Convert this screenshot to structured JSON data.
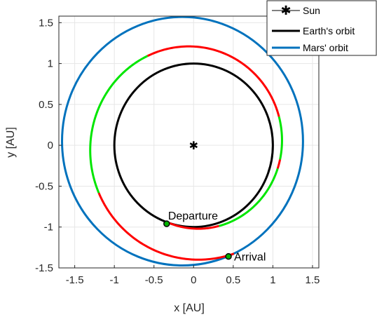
{
  "chart_data": {
    "type": "line",
    "xlabel": "x [AU]",
    "ylabel": "y [AU]",
    "xlim": [
      -1.7,
      1.58
    ],
    "ylim": [
      -1.5,
      1.58
    ],
    "grid": true,
    "xticks": [
      "-1.5",
      "-1",
      "-0.5",
      "0",
      "0.5",
      "1",
      "1.5"
    ],
    "xtick_values": [
      -1.5,
      -1,
      -0.5,
      0,
      0.5,
      1,
      1.5
    ],
    "yticks": [
      "1.5",
      "1",
      "0.5",
      "0",
      "-0.5",
      "-1",
      "-1.5"
    ],
    "ytick_values": [
      1.5,
      1,
      0.5,
      0,
      -0.5,
      -1,
      -1.5
    ],
    "legend_position": "top-right",
    "series": [
      {
        "name": "Sun",
        "marker": "asterisk",
        "color": "#000000",
        "x": [
          0
        ],
        "y": [
          0
        ]
      },
      {
        "name": "Earth's orbit",
        "color": "#000000",
        "shape": "circle",
        "center": [
          0,
          0
        ],
        "radius": 1.0
      },
      {
        "name": "Mars' orbit",
        "color": "#0072BD",
        "shape": "ellipse",
        "center": [
          -0.14,
          0.05
        ],
        "rx": 1.52,
        "ry": 1.52
      }
    ],
    "trajectory": {
      "colors": {
        "coast": "#ff0000",
        "thrust": "#00e600"
      },
      "segments": [
        {
          "mode": "coast",
          "from_deg": 252,
          "to_deg": 288
        },
        {
          "mode": "thrust",
          "from_deg": 288,
          "to_deg": 345
        },
        {
          "mode": "coast",
          "from_deg": 345,
          "to_deg": 351
        },
        {
          "mode": "thrust",
          "from_deg": 351,
          "to_deg": 378
        },
        {
          "mode": "coast",
          "from_deg": 378,
          "to_deg": 478
        },
        {
          "mode": "thrust",
          "from_deg": 478,
          "to_deg": 566
        },
        {
          "mode": "coast",
          "from_deg": 566,
          "to_deg": 651
        }
      ]
    },
    "annotations": [
      {
        "label": "Departure",
        "x": -0.34,
        "y": -0.96
      },
      {
        "label": "Arrival",
        "x": 0.44,
        "y": -1.36
      }
    ]
  }
}
